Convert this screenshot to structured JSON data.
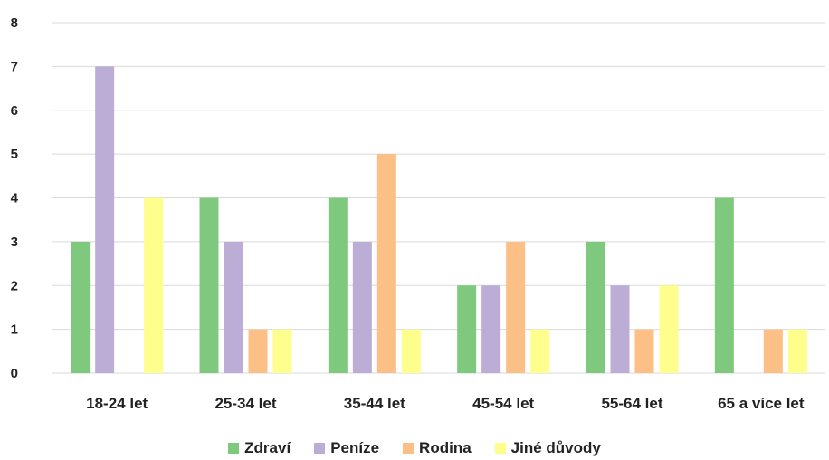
{
  "chart_data": {
    "type": "bar",
    "categories": [
      "18-24 let",
      "25-34 let",
      "35-44 let",
      "45-54 let",
      "55-64 let",
      "65 a více let"
    ],
    "series": [
      {
        "name": "Zdraví",
        "color": "#7fc97f",
        "values": [
          3,
          4,
          4,
          2,
          3,
          4
        ]
      },
      {
        "name": "Peníze",
        "color": "#bcadd6",
        "values": [
          7,
          3,
          3,
          2,
          2,
          0
        ]
      },
      {
        "name": "Rodina",
        "color": "#fcbf86",
        "values": [
          0,
          1,
          5,
          3,
          1,
          1
        ]
      },
      {
        "name": "Jiné důvody",
        "color": "#fdfe8c",
        "values": [
          4,
          1,
          1,
          1,
          2,
          1
        ]
      }
    ],
    "y_ticks": [
      "0",
      "1",
      "2",
      "3",
      "4",
      "5",
      "6",
      "7",
      "8"
    ],
    "ylim": [
      0,
      8
    ],
    "grid": true,
    "gridline_color": "#d9d9d9",
    "legend_position": "bottom"
  }
}
